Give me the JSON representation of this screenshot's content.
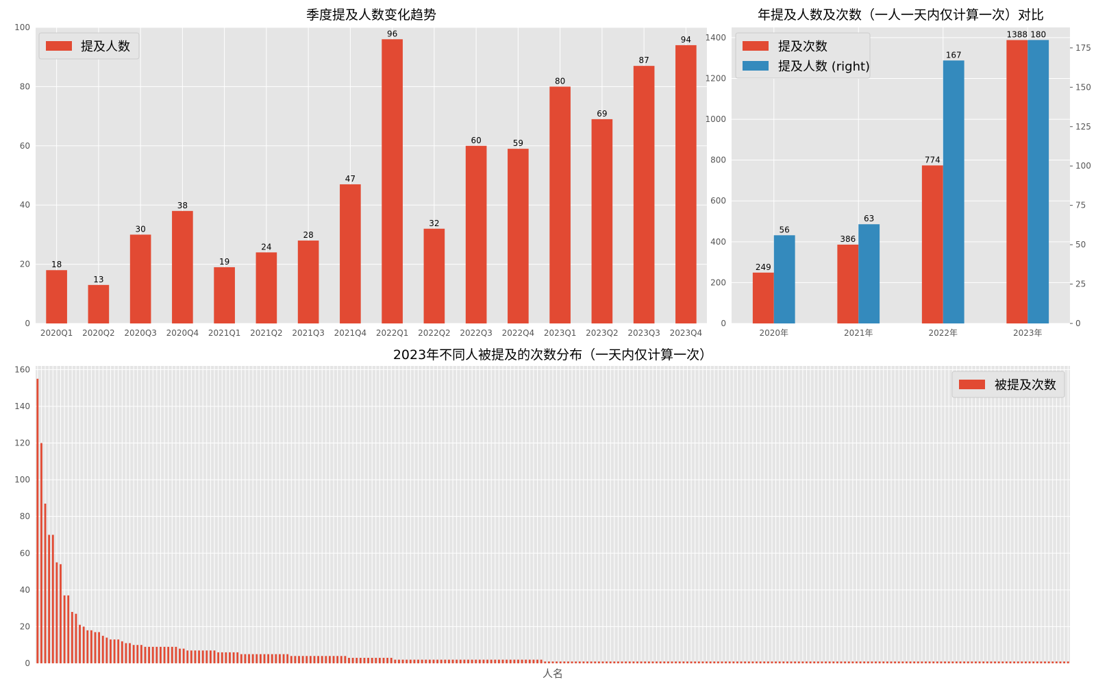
{
  "colors": {
    "red": "#e24a33",
    "blue": "#348abd",
    "plot_bg": "#e5e5e5",
    "grid": "#ffffff"
  },
  "chart_data": [
    {
      "type": "bar",
      "title": "季度提及人数变化趋势",
      "categories": [
        "2020Q1",
        "2020Q2",
        "2020Q3",
        "2020Q4",
        "2021Q1",
        "2021Q2",
        "2021Q3",
        "2021Q4",
        "2022Q1",
        "2022Q2",
        "2022Q3",
        "2022Q4",
        "2023Q1",
        "2023Q2",
        "2023Q3",
        "2023Q4"
      ],
      "series": [
        {
          "name": "提及人数",
          "values": [
            18,
            13,
            30,
            38,
            19,
            24,
            28,
            47,
            96,
            32,
            60,
            59,
            80,
            69,
            87,
            94
          ]
        }
      ],
      "ylim": [
        0,
        100
      ],
      "yticks": [
        0,
        20,
        40,
        60,
        80,
        100
      ],
      "legend": "top-left",
      "grid": true
    },
    {
      "type": "bar",
      "title": "年提及人数及次数（一人一天内仅计算一次）对比",
      "categories": [
        "2020年",
        "2021年",
        "2022年",
        "2023年"
      ],
      "series": [
        {
          "name": "提及次数",
          "values": [
            249,
            386,
            774,
            1388
          ],
          "axis": "left"
        },
        {
          "name": "提及人数 (right)",
          "values": [
            56,
            63,
            167,
            180
          ],
          "axis": "right"
        }
      ],
      "ylim_left": [
        0,
        1450
      ],
      "ylim_right": [
        0,
        188
      ],
      "yticks_left": [
        0,
        200,
        400,
        600,
        800,
        1000,
        1200,
        1400
      ],
      "yticks_right": [
        0,
        25,
        50,
        75,
        100,
        125,
        150,
        175
      ],
      "legend": "top-left",
      "grid": true
    },
    {
      "type": "bar",
      "title": "2023年不同人被提及的次数分布（一天内仅计算一次）",
      "xlabel": "人名",
      "series": [
        {
          "name": "被提及次数",
          "values": [
            155,
            120,
            87,
            70,
            70,
            55,
            54,
            37,
            37,
            28,
            27,
            21,
            20,
            18,
            18,
            17,
            17,
            15,
            14,
            13,
            13,
            13,
            12,
            11,
            11,
            10,
            10,
            10,
            9,
            9,
            9,
            9,
            9,
            9,
            9,
            9,
            9,
            8,
            8,
            7,
            7,
            7,
            7,
            7,
            7,
            7,
            7,
            6,
            6,
            6,
            6,
            6,
            6,
            5,
            5,
            5,
            5,
            5,
            5,
            5,
            5,
            5,
            5,
            5,
            5,
            5,
            4,
            4,
            4,
            4,
            4,
            4,
            4,
            4,
            4,
            4,
            4,
            4,
            4,
            4,
            4,
            3,
            3,
            3,
            3,
            3,
            3,
            3,
            3,
            3,
            3,
            3,
            3,
            2,
            2,
            2,
            2,
            2,
            2,
            2,
            2,
            2,
            2,
            2,
            2,
            2,
            2,
            2,
            2,
            2,
            2,
            2,
            2,
            2,
            2,
            2,
            2,
            2,
            2,
            2,
            2,
            2,
            2,
            2,
            2,
            2,
            2,
            2,
            2,
            2,
            2,
            2,
            1,
            1,
            1,
            1,
            1,
            1,
            1,
            1,
            1,
            1,
            1,
            1,
            1,
            1,
            1,
            1,
            1,
            1,
            1,
            1,
            1,
            1,
            1,
            1,
            1,
            1,
            1,
            1,
            1,
            1,
            1,
            1,
            1,
            1,
            1,
            1,
            1,
            1,
            1,
            1,
            1,
            1,
            1,
            1,
            1,
            1,
            1,
            1,
            1,
            1,
            1,
            1,
            1,
            1,
            1,
            1,
            1,
            1,
            1,
            1,
            1,
            1,
            1,
            1,
            1,
            1,
            1,
            1,
            1,
            1,
            1,
            1,
            1,
            1,
            1,
            1,
            1,
            1,
            1,
            1,
            1,
            1,
            1,
            1,
            1,
            1,
            1,
            1,
            1,
            1,
            1,
            1,
            1,
            1,
            1,
            1,
            1,
            1,
            1,
            1,
            1,
            1,
            1,
            1,
            1,
            1,
            1,
            1,
            1,
            1,
            1,
            1,
            1,
            1,
            1,
            1,
            1,
            1,
            1,
            1,
            1,
            1,
            1,
            1,
            1,
            1,
            1,
            1,
            1,
            1,
            1,
            1,
            1,
            1,
            1,
            1,
            1
          ]
        }
      ],
      "ylim": [
        0,
        162
      ],
      "yticks": [
        0,
        20,
        40,
        60,
        80,
        100,
        120,
        140,
        160
      ],
      "legend": "top-right",
      "grid": true
    }
  ]
}
